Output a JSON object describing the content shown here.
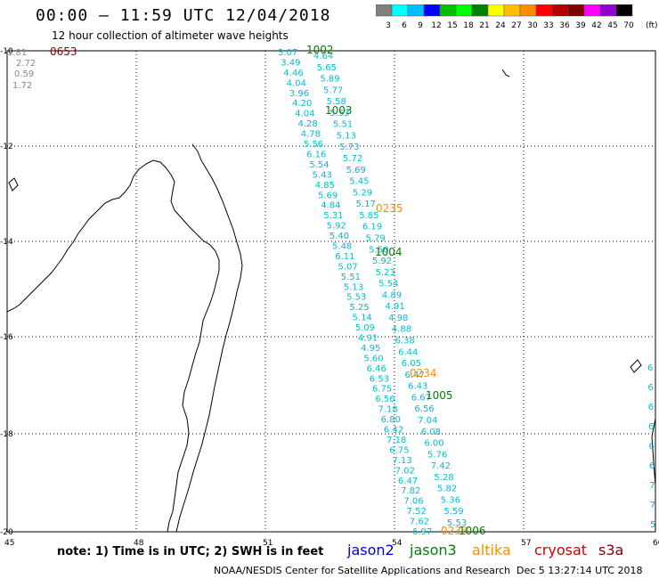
{
  "title": "00:00 – 11:59 UTC 12/04/2018",
  "subtitle": "12 hour collection of altimeter wave heights",
  "colorbar": {
    "unit": "(ft)",
    "labels": [
      "3",
      "6",
      "9",
      "12",
      "15",
      "18",
      "21",
      "24",
      "27",
      "30",
      "33",
      "36",
      "39",
      "42",
      "45",
      "70"
    ],
    "colors": [
      "#7f7f7f",
      "#00ffff",
      "#00bfff",
      "#0000ff",
      "#00c000",
      "#00ff00",
      "#008000",
      "#ffff00",
      "#ffbf00",
      "#ff8c00",
      "#ff0000",
      "#b40000",
      "#7f0000",
      "#ff00ff",
      "#9400d3",
      "#000000"
    ]
  },
  "axes": {
    "lon_ticks": [
      "45",
      "48",
      "51",
      "54",
      "57",
      "60"
    ],
    "lat_ticks": [
      "-10",
      "-12",
      "-14",
      "-16",
      "-18",
      "-20"
    ]
  },
  "grid": true,
  "track_times": [
    {
      "text": "0653",
      "color": "#7f0000"
    },
    {
      "text": "1002",
      "color": "#008000"
    },
    {
      "text": "1003",
      "color": "#008000"
    },
    {
      "text": "0235",
      "color": "#ff8c00"
    },
    {
      "text": "1004",
      "color": "#008000"
    },
    {
      "text": "0234",
      "color": "#ff8c00"
    },
    {
      "text": "1005",
      "color": "#008000"
    },
    {
      "text": "0233",
      "color": "#ff8c00"
    },
    {
      "text": "1006",
      "color": "#008000"
    }
  ],
  "corner_values": [
    "1.81",
    "2.72",
    "0.59",
    "1.72"
  ],
  "track_a": [
    "3.07",
    "3.49",
    "4.46",
    "4.04",
    "3.96",
    "4.20",
    "4.04",
    "4.28",
    "4.78",
    "5.56",
    "6.16",
    "5.54",
    "5.43",
    "4.85",
    "5.69",
    "4.84",
    "5.31",
    "5.92",
    "5.40",
    "5.48",
    "6.11",
    "5.07",
    "5.51",
    "5.13",
    "5.53",
    "5.25",
    "5.14",
    "5.09",
    "4.91",
    "4.95",
    "5.60",
    "6.46",
    "6.53",
    "6.75",
    "6.56",
    "7.18",
    "6.80",
    "6.42",
    "7.18",
    "6.75",
    "7.13",
    "7.02",
    "6.47",
    "7.82",
    "7.06",
    "7.52",
    "7.62",
    "6.97"
  ],
  "track_b": [
    "4.64",
    "5.65",
    "5.89",
    "5.77",
    "5.58",
    "5.53",
    "5.51",
    "5.13",
    "5.73",
    "5.72",
    "5.69",
    "5.45",
    "5.29",
    "5.17",
    "5.85",
    "6.19",
    "5.79",
    "5.50",
    "5.92",
    "5.23",
    "5.54",
    "4.89",
    "4.91",
    "4.98",
    "4.88",
    "6.38",
    "6.44",
    "6.05",
    "6.47",
    "6.43",
    "6.67",
    "6.56",
    "7.04",
    "6.08",
    "6.00",
    "5.76",
    "7.42",
    "5.28",
    "5.82",
    "5.36",
    "5.59",
    "5.53"
  ],
  "track_c": [
    "6",
    "6",
    "6",
    "6",
    "6",
    "6",
    "7",
    "7",
    "5"
  ],
  "note": "note: 1) Time is in UTC; 2) SWH is in feet",
  "legend": [
    {
      "name": "jason2",
      "color": "#0000cc"
    },
    {
      "name": "jason3",
      "color": "#008000"
    },
    {
      "name": "altika",
      "color": "#ff8c00"
    },
    {
      "name": "cryosat",
      "color": "#cc0000"
    },
    {
      "name": "s3a",
      "color": "#7f0000"
    }
  ],
  "credit": "NOAA/NESDIS Center for Satellite Applications and Research",
  "credit_time": "Dec  5 13:27:14 UTC 2018"
}
